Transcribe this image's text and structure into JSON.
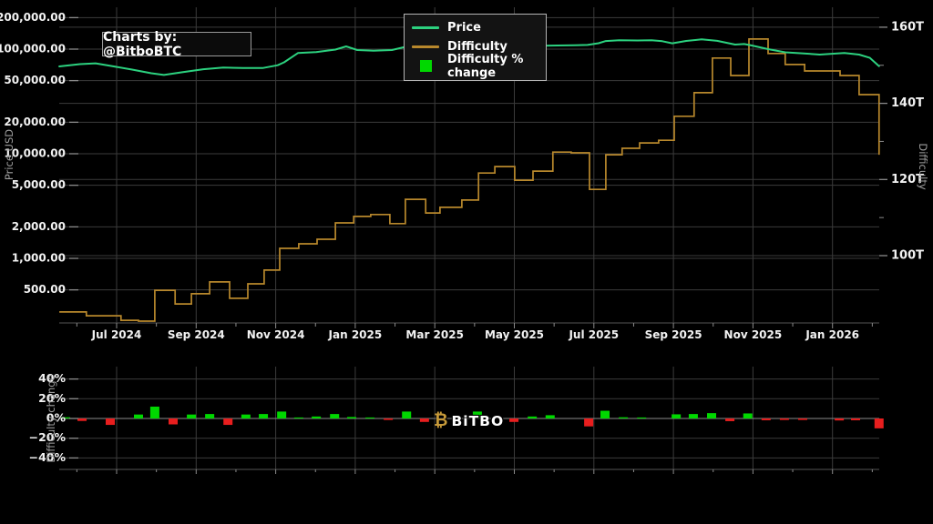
{
  "watermark": {
    "text": "Charts by: @BitboBTC"
  },
  "logo": {
    "symbol": "₿",
    "text": "BiTBO"
  },
  "legend": {
    "items": [
      {
        "label": "Price",
        "swatch": "line",
        "color": "#2cd17f"
      },
      {
        "label": "Difficulty",
        "swatch": "line",
        "color": "#b8882c"
      },
      {
        "label": "Difficulty % change",
        "swatch": "square",
        "color": "#00d800"
      }
    ]
  },
  "colors": {
    "background": "#000000",
    "grid": "#3b3b3b",
    "spine": "#555555",
    "zero_line": "#8a8a8a",
    "tick_dash": "#8a8a8a",
    "tick_text": "#f2f2f2",
    "price_line": "#2cd17f",
    "difficulty_line": "#b8882c",
    "bar_positive": "#00d800",
    "bar_negative": "#e81e1e",
    "logo_gold": "#c79a3a"
  },
  "chart_data": [
    {
      "type": "line",
      "title": "",
      "x_axis": {
        "note": "x unit m = months since Jul 2024 tick",
        "tick_labels": [
          "Jul 2024",
          "Sep 2024",
          "Nov 2024",
          "Jan 2025",
          "Mar 2025",
          "May 2025",
          "Jul 2025",
          "Sep 2025",
          "Nov 2025",
          "Jan 2026"
        ],
        "tick_positions_m": [
          0,
          2,
          4,
          6,
          8,
          10,
          12,
          14,
          16,
          18
        ],
        "range_m": [
          -1.45,
          19.18
        ]
      },
      "left_axis": {
        "label": "Price USD",
        "scale": "log",
        "tick_labels": [
          "200,000.00",
          "100,000.00",
          "50,000.00",
          "20,000.00",
          "10,000.00",
          "5,000.00",
          "2,000.00",
          "1,000.00",
          "500.00"
        ],
        "tick_values": [
          200000,
          100000,
          50000,
          20000,
          10000,
          5000,
          2000,
          1000,
          500
        ],
        "range": [
          400,
          250000
        ]
      },
      "right_axis": {
        "label": "Difficulty",
        "scale": "linear",
        "unit": "T",
        "tick_labels": [
          "160T",
          "140T",
          "120T",
          "100T"
        ],
        "tick_values": [
          160,
          140,
          120,
          100
        ],
        "minor_tick_values": [
          150,
          130,
          110
        ],
        "range": [
          82,
          165
        ]
      },
      "series": [
        {
          "name": "Price",
          "axis": "left",
          "style": "line",
          "points": [
            [
              -1.44,
              68300
            ],
            [
              -0.92,
              71800
            ],
            [
              -0.53,
              73200
            ],
            [
              -0.14,
              69000
            ],
            [
              0.39,
              63700
            ],
            [
              0.87,
              58800
            ],
            [
              1.19,
              56600
            ],
            [
              1.67,
              60200
            ],
            [
              2.18,
              64300
            ],
            [
              2.68,
              66600
            ],
            [
              3.18,
              65900
            ],
            [
              3.67,
              66000
            ],
            [
              4.05,
              70100
            ],
            [
              4.21,
              74800
            ],
            [
              4.56,
              91700
            ],
            [
              5.02,
              93600
            ],
            [
              5.5,
              99000
            ],
            [
              5.77,
              106200
            ],
            [
              6.05,
              98000
            ],
            [
              6.46,
              96700
            ],
            [
              6.92,
              98000
            ],
            [
              7.31,
              106200
            ],
            [
              7.65,
              96000
            ],
            [
              7.95,
              87000
            ],
            [
              8.29,
              83500
            ],
            [
              8.64,
              86000
            ],
            [
              8.98,
              92000
            ],
            [
              9.32,
              95500
            ],
            [
              9.67,
              103000
            ],
            [
              10.01,
              106000
            ],
            [
              10.35,
              107500
            ],
            [
              10.74,
              107800
            ],
            [
              11.09,
              108300
            ],
            [
              11.5,
              108900
            ],
            [
              11.84,
              109700
            ],
            [
              12.12,
              114000
            ],
            [
              12.3,
              119500
            ],
            [
              12.64,
              121400
            ],
            [
              13.1,
              121000
            ],
            [
              13.45,
              121400
            ],
            [
              13.72,
              119000
            ],
            [
              13.97,
              113700
            ],
            [
              14.32,
              119800
            ],
            [
              14.71,
              123900
            ],
            [
              15.1,
              119900
            ],
            [
              15.55,
              110500
            ],
            [
              15.78,
              111900
            ],
            [
              15.97,
              108300
            ],
            [
              16.38,
              100000
            ],
            [
              16.81,
              93200
            ],
            [
              17.23,
              91200
            ],
            [
              17.68,
              88700
            ],
            [
              18.03,
              90500
            ],
            [
              18.3,
              91700
            ],
            [
              18.67,
              88700
            ],
            [
              18.94,
              82500
            ],
            [
              19.17,
              68800
            ]
          ]
        },
        {
          "name": "Difficulty",
          "axis": "right",
          "style": "step",
          "points": [
            [
              -1.44,
              85.2
            ],
            [
              -0.76,
              84.2
            ],
            [
              0.11,
              83.0
            ],
            [
              0.55,
              82.8
            ],
            [
              0.96,
              90.9
            ],
            [
              1.47,
              87.3
            ],
            [
              1.88,
              90.0
            ],
            [
              2.34,
              93.1
            ],
            [
              2.84,
              88.8
            ],
            [
              3.3,
              92.6
            ],
            [
              3.71,
              96.2
            ],
            [
              4.1,
              101.9
            ],
            [
              4.58,
              103.1
            ],
            [
              5.04,
              104.3
            ],
            [
              5.5,
              108.6
            ],
            [
              5.96,
              110.3
            ],
            [
              6.39,
              110.8
            ],
            [
              6.87,
              108.4
            ],
            [
              7.26,
              114.8
            ],
            [
              7.77,
              111.2
            ],
            [
              8.13,
              112.7
            ],
            [
              8.68,
              114.6
            ],
            [
              9.1,
              121.7
            ],
            [
              9.51,
              123.4
            ],
            [
              10.01,
              119.8
            ],
            [
              10.47,
              122.2
            ],
            [
              10.97,
              127.2
            ],
            [
              11.43,
              127.0
            ],
            [
              11.89,
              117.4
            ],
            [
              12.3,
              126.5
            ],
            [
              12.71,
              128.2
            ],
            [
              13.15,
              129.6
            ],
            [
              13.63,
              130.3
            ],
            [
              14.02,
              136.6
            ],
            [
              14.52,
              142.8
            ],
            [
              14.98,
              151.9
            ],
            [
              15.44,
              147.3
            ],
            [
              15.9,
              156.9
            ],
            [
              16.38,
              153.1
            ],
            [
              16.81,
              150.2
            ],
            [
              17.3,
              148.5
            ],
            [
              18.19,
              147.3
            ],
            [
              18.67,
              142.3
            ],
            [
              19.17,
              126.5
            ]
          ]
        }
      ]
    },
    {
      "type": "bar",
      "y_axis": {
        "label": "Difficulty change",
        "tick_labels": [
          "40%",
          "20%",
          "0%",
          "−20%",
          "−40%"
        ],
        "tick_values": [
          40,
          20,
          0,
          -20,
          -40
        ],
        "range": [
          -52,
          52
        ]
      },
      "series": [
        {
          "name": "Difficulty % change",
          "bars": [
            [
              -1.28,
              1.2
            ],
            [
              -0.87,
              -2.5
            ],
            [
              -0.16,
              -6.5
            ],
            [
              0.55,
              4
            ],
            [
              0.96,
              12
            ],
            [
              1.42,
              -6
            ],
            [
              1.88,
              4
            ],
            [
              2.34,
              4.5
            ],
            [
              2.8,
              -6.5
            ],
            [
              3.25,
              4
            ],
            [
              3.69,
              4.5
            ],
            [
              4.15,
              7
            ],
            [
              4.58,
              1
            ],
            [
              5.02,
              2
            ],
            [
              5.48,
              4.5
            ],
            [
              5.91,
              1.5
            ],
            [
              6.37,
              1
            ],
            [
              6.83,
              -1.5
            ],
            [
              7.29,
              7
            ],
            [
              7.74,
              -3.5
            ],
            [
              9.07,
              7
            ],
            [
              9.99,
              -3.5
            ],
            [
              10.45,
              2
            ],
            [
              10.9,
              3.3
            ],
            [
              11.87,
              -8
            ],
            [
              12.28,
              7.8
            ],
            [
              12.74,
              1.2
            ],
            [
              13.2,
              1
            ],
            [
              14.07,
              4.2
            ],
            [
              14.5,
              4.5
            ],
            [
              14.96,
              5.4
            ],
            [
              15.42,
              -2.7
            ],
            [
              15.87,
              5.1
            ],
            [
              16.33,
              -1.8
            ],
            [
              16.79,
              -1.5
            ],
            [
              17.25,
              -1.5
            ],
            [
              18.17,
              -2
            ],
            [
              18.58,
              -1.8
            ],
            [
              19.17,
              -10
            ]
          ]
        }
      ]
    }
  ]
}
